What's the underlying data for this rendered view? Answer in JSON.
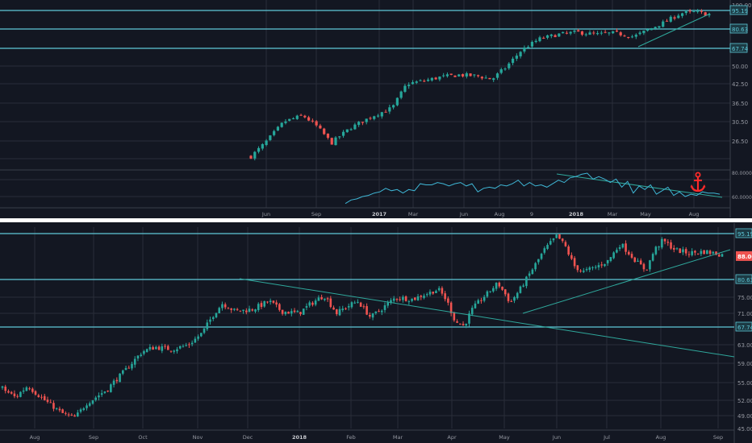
{
  "colors": {
    "background": "#131722",
    "grid": "#2a2e39",
    "up": "#26a69a",
    "down": "#ef5350",
    "level_line": "#5ec8d8",
    "trend_line": "#2fa89c",
    "indicator_line": "#3fb7d6",
    "axis_text": "#9598a1",
    "separator": "#ffffff",
    "anchor": "#ff2a2a",
    "last_price_bg": "#ef5350"
  },
  "icons": {
    "anchor": "anchor-icon"
  },
  "chart_data": [
    {
      "type": "line",
      "subtype": "candlestick",
      "panel": "top-weekly",
      "x_tick_labels": [
        "Jun",
        "Sep",
        "2017",
        "Mar",
        "Jun",
        "Aug",
        "9",
        "2018",
        "Mar",
        "May",
        "Aug"
      ],
      "y_tick_labels": [
        "100.00",
        "80.63",
        "67.74",
        "58.00",
        "50.00",
        "42.50",
        "36.50",
        "30.50",
        "26.50"
      ],
      "level_labels": [
        "95.19",
        "80.63",
        "67.74"
      ],
      "levels": [
        95.19,
        80.63,
        67.74
      ],
      "ylim": [
        23,
        100
      ],
      "close_path": [
        {
          "week": 0,
          "value": 27.0
        },
        {
          "week": 6,
          "value": 30.0
        },
        {
          "week": 14,
          "value": 36.5
        },
        {
          "week": 22,
          "value": 38.5
        },
        {
          "week": 28,
          "value": 35.0
        },
        {
          "week": 34,
          "value": 30.0
        },
        {
          "week": 42,
          "value": 34.5
        },
        {
          "week": 52,
          "value": 38.5
        },
        {
          "week": 60,
          "value": 41.0
        },
        {
          "week": 66,
          "value": 50.0
        },
        {
          "week": 74,
          "value": 51.5
        },
        {
          "week": 80,
          "value": 53.0
        },
        {
          "week": 88,
          "value": 54.0
        },
        {
          "week": 96,
          "value": 53.5
        },
        {
          "week": 102,
          "value": 52.0
        },
        {
          "week": 108,
          "value": 57.5
        },
        {
          "week": 114,
          "value": 66.0
        },
        {
          "week": 122,
          "value": 74.0
        },
        {
          "week": 130,
          "value": 77.0
        },
        {
          "week": 138,
          "value": 78.5
        },
        {
          "week": 146,
          "value": 77.0
        },
        {
          "week": 154,
          "value": 78.0
        },
        {
          "week": 162,
          "value": 75.5
        },
        {
          "week": 168,
          "value": 80.0
        },
        {
          "week": 174,
          "value": 85.0
        },
        {
          "week": 182,
          "value": 93.0
        },
        {
          "week": 188,
          "value": 94.0
        },
        {
          "week": 194,
          "value": 92.0
        }
      ],
      "indicator": {
        "y_tick_labels": [
          "80.0000",
          "60.0000"
        ],
        "ylim": [
          53,
          82
        ],
        "values": [
          [
            0,
            54
          ],
          [
            3,
            57
          ],
          [
            6,
            58
          ],
          [
            9,
            60
          ],
          [
            12,
            61
          ],
          [
            15,
            63
          ],
          [
            18,
            64
          ],
          [
            21,
            67
          ],
          [
            24,
            65
          ],
          [
            27,
            66
          ],
          [
            30,
            63
          ],
          [
            33,
            66
          ],
          [
            36,
            65
          ],
          [
            39,
            71
          ],
          [
            42,
            70
          ],
          [
            45,
            70
          ],
          [
            48,
            72
          ],
          [
            51,
            71
          ],
          [
            54,
            69
          ],
          [
            57,
            71
          ],
          [
            60,
            72
          ],
          [
            63,
            69
          ],
          [
            66,
            71
          ],
          [
            69,
            64
          ],
          [
            72,
            67
          ],
          [
            75,
            68
          ],
          [
            78,
            67
          ],
          [
            81,
            70
          ],
          [
            84,
            69
          ],
          [
            87,
            71
          ],
          [
            90,
            74
          ],
          [
            93,
            69
          ],
          [
            96,
            72
          ],
          [
            99,
            69
          ],
          [
            102,
            70
          ],
          [
            105,
            68
          ],
          [
            108,
            71
          ],
          [
            111,
            74
          ],
          [
            114,
            72
          ],
          [
            117,
            76
          ],
          [
            120,
            77
          ],
          [
            123,
            79
          ],
          [
            126,
            80
          ],
          [
            129,
            75
          ],
          [
            132,
            77
          ],
          [
            135,
            75
          ],
          [
            138,
            72
          ],
          [
            141,
            75
          ],
          [
            144,
            68
          ],
          [
            147,
            73
          ],
          [
            150,
            63
          ],
          [
            153,
            69
          ],
          [
            156,
            66
          ],
          [
            159,
            70
          ],
          [
            162,
            62
          ],
          [
            165,
            65
          ],
          [
            168,
            68
          ],
          [
            171,
            61
          ],
          [
            174,
            64
          ],
          [
            177,
            60
          ],
          [
            180,
            62
          ],
          [
            183,
            61
          ],
          [
            186,
            64
          ],
          [
            189,
            63
          ],
          [
            192,
            63
          ],
          [
            195,
            62
          ]
        ]
      }
    },
    {
      "type": "line",
      "subtype": "candlestick",
      "panel": "bottom-daily",
      "x_tick_labels": [
        "Aug",
        "Sep",
        "Oct",
        "Nov",
        "Dec",
        "2018",
        "Feb",
        "Mar",
        "Apr",
        "May",
        "Jun",
        "Jul",
        "Aug",
        "Sep"
      ],
      "y_tick_labels": [
        "95.19",
        "80.63",
        "75.00",
        "71.00",
        "67.74",
        "63.00",
        "59.00",
        "55.00",
        "52.00",
        "49.00",
        "45.00"
      ],
      "level_labels": [
        "95.19",
        "80.63",
        "67.74"
      ],
      "levels": [
        95.19,
        80.63,
        67.74
      ],
      "last_price_label": "88.06",
      "last_price": 88.06,
      "ylim": [
        44,
        97
      ],
      "close_path": [
        {
          "day": 0,
          "value": 54.0
        },
        {
          "day": 6,
          "value": 52.5
        },
        {
          "day": 12,
          "value": 54.5
        },
        {
          "day": 20,
          "value": 52.0
        },
        {
          "day": 28,
          "value": 49.5
        },
        {
          "day": 34,
          "value": 48.5
        },
        {
          "day": 40,
          "value": 51.5
        },
        {
          "day": 50,
          "value": 54.0
        },
        {
          "day": 58,
          "value": 57.5
        },
        {
          "day": 66,
          "value": 61.5
        },
        {
          "day": 72,
          "value": 62.5
        },
        {
          "day": 80,
          "value": 62.0
        },
        {
          "day": 88,
          "value": 63.0
        },
        {
          "day": 94,
          "value": 66.0
        },
        {
          "day": 100,
          "value": 71.0
        },
        {
          "day": 104,
          "value": 73.5
        },
        {
          "day": 110,
          "value": 71.5
        },
        {
          "day": 118,
          "value": 72.0
        },
        {
          "day": 126,
          "value": 74.0
        },
        {
          "day": 132,
          "value": 71.5
        },
        {
          "day": 140,
          "value": 71.0
        },
        {
          "day": 146,
          "value": 73.5
        },
        {
          "day": 152,
          "value": 75.5
        },
        {
          "day": 158,
          "value": 71.0
        },
        {
          "day": 162,
          "value": 72.5
        },
        {
          "day": 168,
          "value": 74.0
        },
        {
          "day": 174,
          "value": 70.0
        },
        {
          "day": 180,
          "value": 72.5
        },
        {
          "day": 186,
          "value": 75.0
        },
        {
          "day": 194,
          "value": 74.5
        },
        {
          "day": 200,
          "value": 76.0
        },
        {
          "day": 206,
          "value": 77.5
        },
        {
          "day": 210,
          "value": 74.0
        },
        {
          "day": 214,
          "value": 69.0
        },
        {
          "day": 218,
          "value": 68.0
        },
        {
          "day": 222,
          "value": 72.0
        },
        {
          "day": 228,
          "value": 75.5
        },
        {
          "day": 234,
          "value": 79.5
        },
        {
          "day": 240,
          "value": 73.5
        },
        {
          "day": 244,
          "value": 77.0
        },
        {
          "day": 250,
          "value": 83.5
        },
        {
          "day": 256,
          "value": 90.0
        },
        {
          "day": 262,
          "value": 94.5
        },
        {
          "day": 266,
          "value": 91.0
        },
        {
          "day": 270,
          "value": 85.0
        },
        {
          "day": 274,
          "value": 83.0
        },
        {
          "day": 280,
          "value": 84.5
        },
        {
          "day": 286,
          "value": 86.5
        },
        {
          "day": 292,
          "value": 92.0
        },
        {
          "day": 296,
          "value": 89.0
        },
        {
          "day": 300,
          "value": 86.0
        },
        {
          "day": 304,
          "value": 83.5
        },
        {
          "day": 308,
          "value": 90.0
        },
        {
          "day": 312,
          "value": 93.0
        },
        {
          "day": 318,
          "value": 90.0
        },
        {
          "day": 324,
          "value": 89.0
        },
        {
          "day": 332,
          "value": 89.5
        },
        {
          "day": 340,
          "value": 88.5
        }
      ]
    }
  ]
}
